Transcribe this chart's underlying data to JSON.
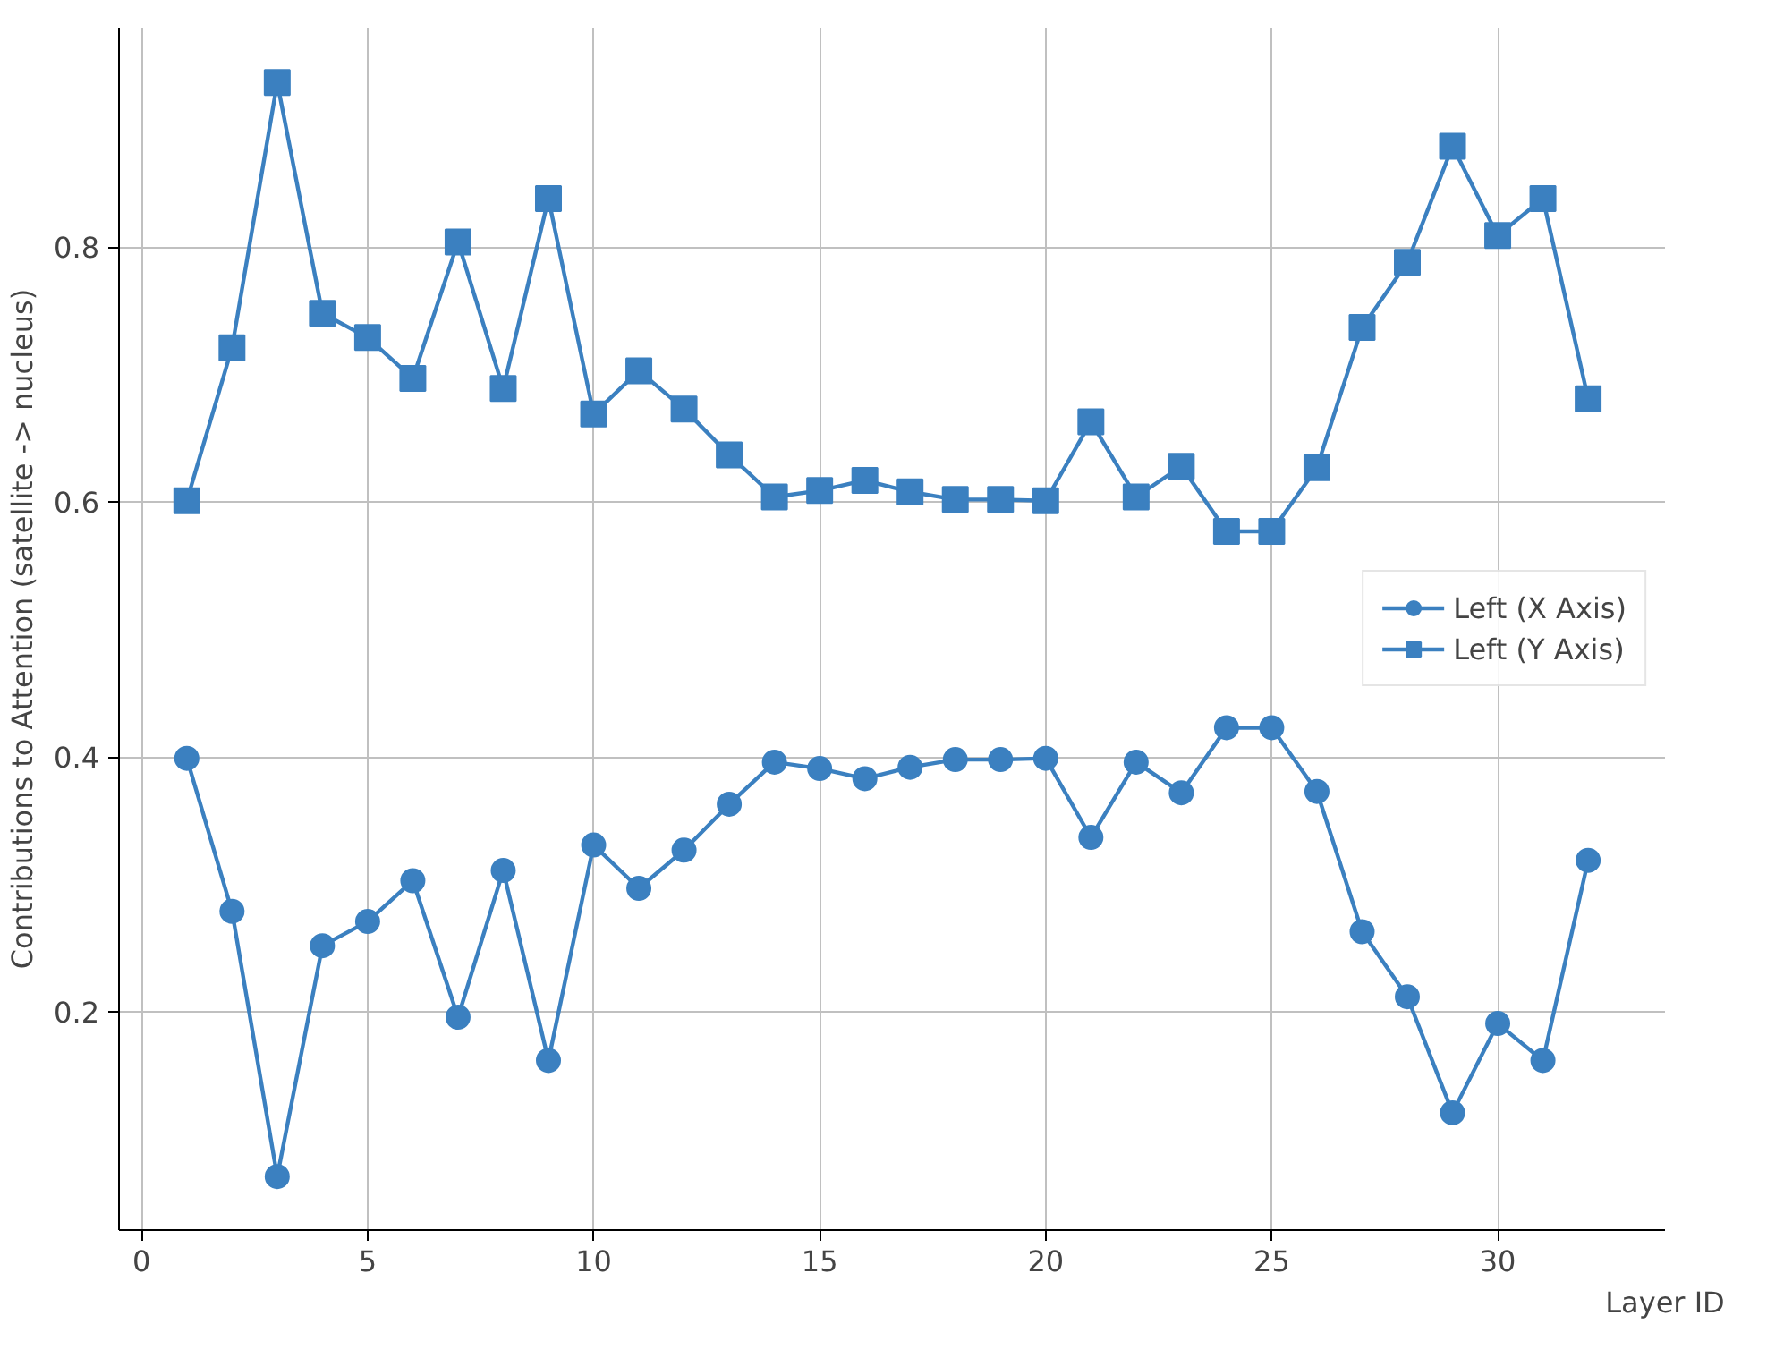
{
  "chart_data": {
    "type": "line",
    "xlabel": "Layer ID",
    "ylabel": "Contributions to Attention (satellite -> nucleus)",
    "x": [
      1,
      2,
      3,
      4,
      5,
      6,
      7,
      8,
      9,
      10,
      11,
      12,
      13,
      14,
      15,
      16,
      17,
      18,
      19,
      20,
      21,
      22,
      23,
      24,
      25,
      26,
      27,
      28,
      29,
      30,
      31,
      32
    ],
    "series": [
      {
        "name": "Left (X Axis)",
        "color": "#3b80c0",
        "marker": "circle",
        "values": [
          0.399,
          0.279,
          0.071,
          0.252,
          0.271,
          0.303,
          0.196,
          0.311,
          0.162,
          0.331,
          0.297,
          0.327,
          0.363,
          0.396,
          0.391,
          0.383,
          0.392,
          0.398,
          0.398,
          0.399,
          0.337,
          0.396,
          0.372,
          0.423,
          0.423,
          0.373,
          0.263,
          0.212,
          0.121,
          0.191,
          0.162,
          0.319
        ]
      },
      {
        "name": "Left (Y Axis)",
        "color": "#3b80c0",
        "marker": "square",
        "values": [
          0.601,
          0.721,
          0.929,
          0.748,
          0.729,
          0.697,
          0.804,
          0.689,
          0.838,
          0.669,
          0.703,
          0.673,
          0.637,
          0.604,
          0.609,
          0.617,
          0.608,
          0.602,
          0.602,
          0.601,
          0.663,
          0.604,
          0.628,
          0.577,
          0.577,
          0.627,
          0.737,
          0.788,
          0.879,
          0.809,
          0.838,
          0.681
        ]
      }
    ],
    "xlim": [
      -0.5,
      33.7
    ],
    "ylim": [
      0.029,
      0.972
    ],
    "xticks": [
      0,
      5,
      10,
      15,
      20,
      25,
      30
    ],
    "yticks": [
      0.2,
      0.4,
      0.6,
      0.8
    ],
    "grid": true,
    "legend": "right",
    "line_style": "solid"
  }
}
